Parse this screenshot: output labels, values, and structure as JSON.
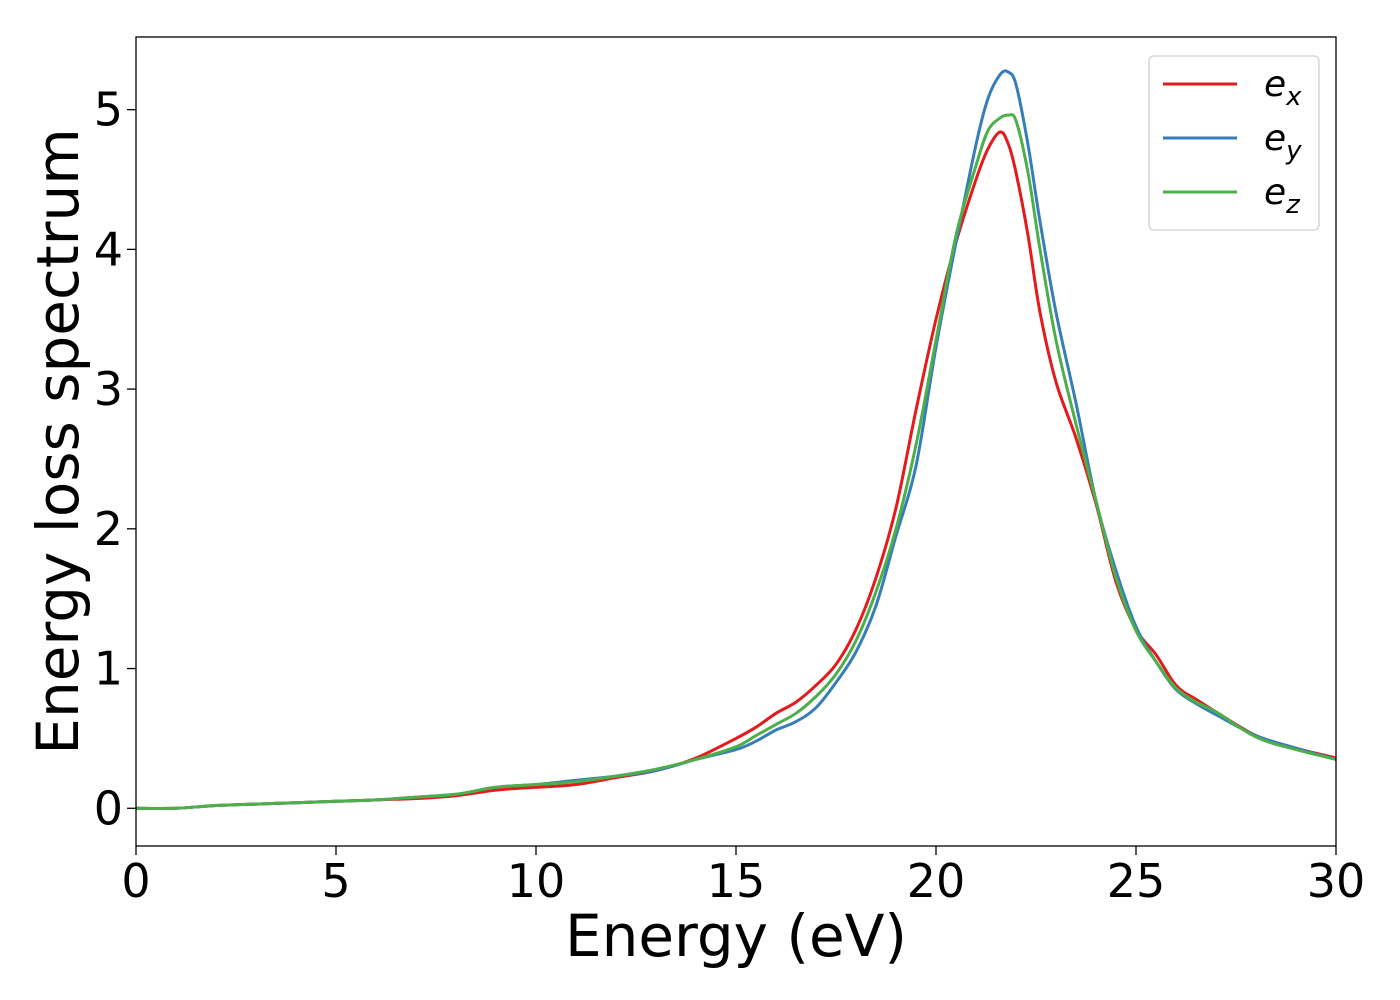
{
  "chart_data": {
    "type": "line",
    "title": "",
    "xlabel": "Energy (eV)",
    "ylabel": "Energy loss spectrum",
    "xlim": [
      0,
      30
    ],
    "ylim": [
      -0.27,
      5.52
    ],
    "xticks": [
      0,
      5,
      10,
      15,
      20,
      25,
      30
    ],
    "yticks": [
      0,
      1,
      2,
      3,
      4,
      5
    ],
    "grid": false,
    "legend_position": "top-right",
    "series": [
      {
        "name": "e",
        "subscript": "x",
        "color": "#e41a1c",
        "x": [
          0,
          1,
          2,
          3,
          4,
          5,
          6,
          7,
          8,
          9,
          10,
          11,
          12,
          13,
          14,
          15,
          15.5,
          16,
          16.5,
          17,
          17.5,
          18,
          18.5,
          19,
          19.5,
          20,
          20.5,
          21,
          21.3,
          21.6,
          21.8,
          22,
          22.3,
          22.6,
          23,
          23.5,
          24,
          24.5,
          25,
          25.5,
          26,
          26.5,
          27,
          28,
          29,
          30
        ],
        "y": [
          0.0,
          0.0,
          0.02,
          0.03,
          0.04,
          0.05,
          0.06,
          0.07,
          0.09,
          0.13,
          0.15,
          0.17,
          0.22,
          0.27,
          0.36,
          0.5,
          0.58,
          0.68,
          0.76,
          0.88,
          1.03,
          1.28,
          1.65,
          2.15,
          2.85,
          3.5,
          4.05,
          4.5,
          4.72,
          4.84,
          4.76,
          4.55,
          4.1,
          3.55,
          3.05,
          2.65,
          2.18,
          1.62,
          1.28,
          1.1,
          0.88,
          0.78,
          0.69,
          0.52,
          0.43,
          0.36
        ]
      },
      {
        "name": "e",
        "subscript": "y",
        "color": "#377eb8",
        "x": [
          0,
          1,
          2,
          3,
          4,
          5,
          6,
          7,
          8,
          9,
          10,
          11,
          12,
          13,
          14,
          15,
          15.5,
          16,
          16.5,
          17,
          17.5,
          18,
          18.5,
          19,
          19.5,
          20,
          20.5,
          21,
          21.3,
          21.6,
          21.8,
          22,
          22.3,
          22.6,
          23,
          23.5,
          24,
          24.5,
          25,
          25.5,
          26,
          26.5,
          27,
          28,
          29,
          30
        ],
        "y": [
          0.0,
          0.0,
          0.02,
          0.03,
          0.04,
          0.05,
          0.06,
          0.08,
          0.1,
          0.15,
          0.17,
          0.2,
          0.23,
          0.27,
          0.35,
          0.42,
          0.48,
          0.56,
          0.62,
          0.72,
          0.9,
          1.12,
          1.45,
          1.95,
          2.45,
          3.3,
          4.05,
          4.75,
          5.08,
          5.25,
          5.27,
          5.18,
          4.75,
          4.2,
          3.55,
          2.9,
          2.2,
          1.7,
          1.3,
          1.05,
          0.85,
          0.75,
          0.67,
          0.52,
          0.43,
          0.35
        ]
      },
      {
        "name": "e",
        "subscript": "z",
        "color": "#4daf4a",
        "x": [
          0,
          1,
          2,
          3,
          4,
          5,
          6,
          7,
          8,
          9,
          10,
          11,
          12,
          13,
          14,
          15,
          15.5,
          16,
          16.5,
          17,
          17.5,
          18,
          18.5,
          19,
          19.5,
          20,
          20.5,
          21,
          21.3,
          21.6,
          21.8,
          22,
          22.3,
          22.6,
          23,
          23.5,
          24,
          24.5,
          25,
          25.5,
          26,
          26.5,
          27,
          28,
          29,
          30
        ],
        "y": [
          0.0,
          0.0,
          0.02,
          0.03,
          0.04,
          0.05,
          0.06,
          0.08,
          0.1,
          0.15,
          0.17,
          0.19,
          0.23,
          0.28,
          0.35,
          0.44,
          0.52,
          0.6,
          0.68,
          0.8,
          0.96,
          1.2,
          1.55,
          2.0,
          2.6,
          3.35,
          4.1,
          4.6,
          4.85,
          4.94,
          4.96,
          4.92,
          4.55,
          4.0,
          3.35,
          2.75,
          2.2,
          1.65,
          1.27,
          1.05,
          0.86,
          0.76,
          0.69,
          0.51,
          0.42,
          0.35
        ]
      }
    ]
  }
}
